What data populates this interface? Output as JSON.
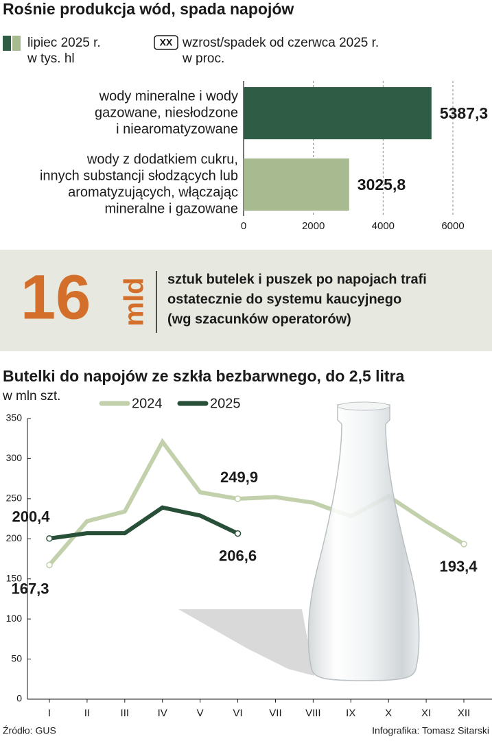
{
  "chart_data": [
    {
      "type": "bar",
      "title": "Rośnie produkcja wód, spada napojów",
      "legend_label": [
        "lipiec 2025 r.",
        "w tys. hl"
      ],
      "legend_change_box": "XX",
      "legend_change_label": [
        "wzrost/spadek od czerwca 2025 r.",
        "w proc."
      ],
      "categories": [
        [
          "wody mineralne i wody",
          "gazowane, niesłodzone",
          "i niearomatyzowane"
        ],
        [
          "wody z dodatkiem cukru,",
          "innych substancji słodzących lub",
          "aromatyzujących, włączając",
          "mineralne i gazowane"
        ]
      ],
      "values": [
        5387.3,
        3025.8
      ],
      "value_labels": [
        "5387,3",
        "3025,8"
      ],
      "colors": [
        "#2e5c45",
        "#a8ba8f"
      ],
      "xlim": [
        0,
        6000
      ],
      "xticks": [
        0,
        2000,
        4000,
        6000
      ],
      "grid": true
    },
    {
      "type": "line",
      "title": "Butelki do napojów ze szkła bezbarwnego, do 2,5 litra",
      "y_label": "w mln szt.",
      "categories": [
        "I",
        "II",
        "III",
        "IV",
        "V",
        "VI",
        "VII",
        "VIII",
        "IX",
        "X",
        "XI",
        "XII"
      ],
      "series": [
        {
          "name": "2024",
          "color": "#c2d0ab",
          "values": [
            167.3,
            222,
            234,
            321,
            258,
            249.9,
            252,
            245,
            228,
            253,
            222,
            193.4
          ],
          "value_labels": [
            "167,3",
            null,
            null,
            null,
            null,
            "249,9",
            null,
            null,
            null,
            null,
            null,
            "193,4"
          ]
        },
        {
          "name": "2025",
          "color": "#284f38",
          "values": [
            200.4,
            207,
            207,
            239,
            229,
            206.6,
            null,
            null,
            null,
            null,
            null,
            null
          ],
          "value_labels": [
            "200,4",
            null,
            null,
            null,
            null,
            "206,6",
            null,
            null,
            null,
            null,
            null,
            null
          ]
        }
      ],
      "ylim": [
        0,
        350
      ],
      "yticks": [
        0,
        50,
        100,
        150,
        200,
        250,
        300,
        350
      ]
    }
  ],
  "highlight": {
    "number": "16",
    "unit": "mld",
    "text": [
      "sztuk butelek i puszek po napojach trafi",
      "ostatecznie do systemu kaucyjnego",
      "(wg szacunków operatorów)"
    ]
  },
  "source": "Źródło: GUS",
  "credit": "Infografika: Tomasz Sitarski"
}
